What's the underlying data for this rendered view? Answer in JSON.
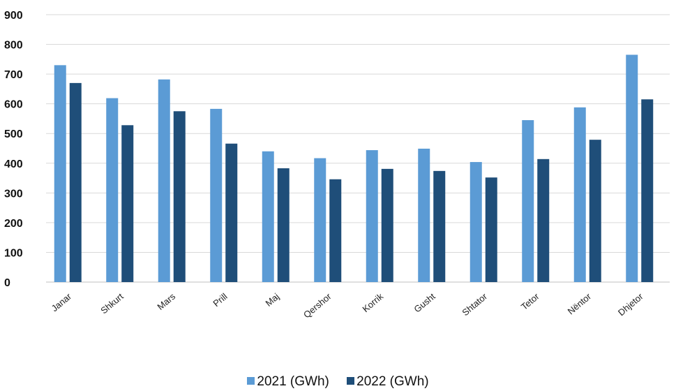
{
  "chart_data": {
    "type": "bar",
    "categories": [
      "Janar",
      "Shkurt",
      "Mars",
      "Prill",
      "Maj",
      "Qershor",
      "Korrik",
      "Gusht",
      "Shtator",
      "Tetor",
      "Nëntor",
      "Dhjetor"
    ],
    "series": [
      {
        "name": "2021 (GWh)",
        "color": "#5b9bd5",
        "values": [
          730,
          619,
          682,
          583,
          440,
          417,
          444,
          449,
          404,
          545,
          588,
          765
        ]
      },
      {
        "name": "2022 (GWh)",
        "color": "#1f4e79",
        "values": [
          670,
          528,
          575,
          466,
          383,
          346,
          381,
          374,
          352,
          414,
          479,
          615
        ]
      }
    ],
    "yticks": [
      "0",
      "100",
      "200",
      "300",
      "400",
      "500",
      "600",
      "700",
      "800",
      "900"
    ],
    "ylim": [
      0,
      900
    ],
    "grid": true,
    "legend": "bottom-center",
    "xlabel": "",
    "ylabel": "",
    "title": ""
  }
}
